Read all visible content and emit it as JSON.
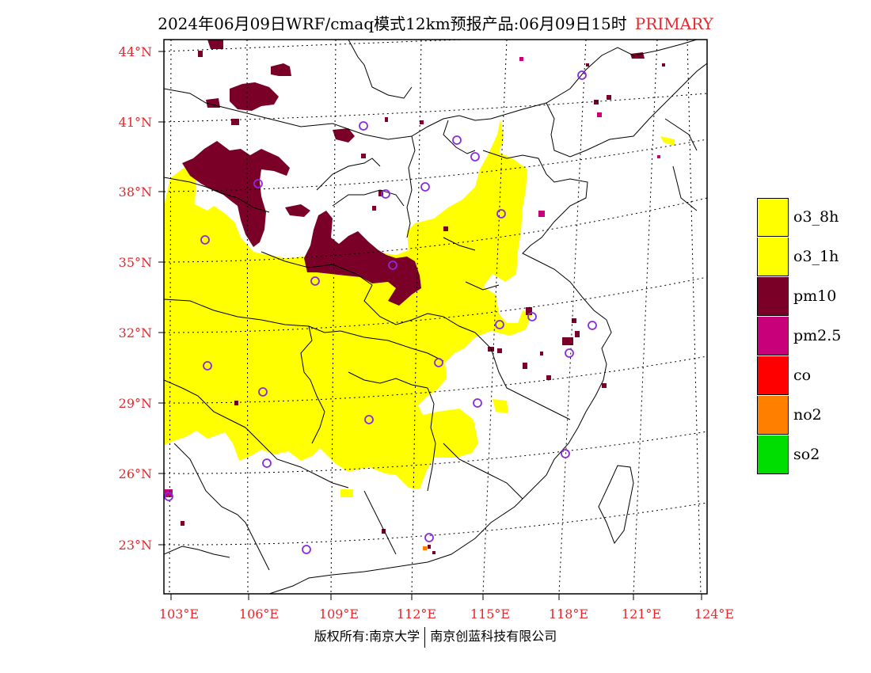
{
  "title": {
    "main": "2024年06月09日WRF/cmaq模式12km预报产品:06月09日15时",
    "tag": "PRIMARY"
  },
  "axes": {
    "lat_labels": [
      "44°N",
      "41°N",
      "38°N",
      "35°N",
      "32°N",
      "29°N",
      "26°N",
      "23°N"
    ],
    "lon_labels": [
      "103°E",
      "106°E",
      "109°E",
      "112°E",
      "115°E",
      "118°E",
      "121°E",
      "124°E"
    ]
  },
  "legend": {
    "items": [
      {
        "label": "o3_8h",
        "color": "#ffff00"
      },
      {
        "label": "o3_1h",
        "color": "#ffff00"
      },
      {
        "label": "pm10",
        "color": "#7a0028"
      },
      {
        "label": "pm2.5",
        "color": "#c8007a"
      },
      {
        "label": "co",
        "color": "#ff0000"
      },
      {
        "label": "no2",
        "color": "#ff7f00"
      },
      {
        "label": "so2",
        "color": "#00dd00"
      }
    ]
  },
  "colors": {
    "o3": "#ffff00",
    "pm10": "#7a0028",
    "pm25": "#c8007a",
    "no2": "#ff7f00",
    "station": "#8a2be2",
    "label": "#e8262c"
  },
  "footer": {
    "left": "版权所有:南京大学",
    "right": "南京创蓝科技有限公司"
  }
}
